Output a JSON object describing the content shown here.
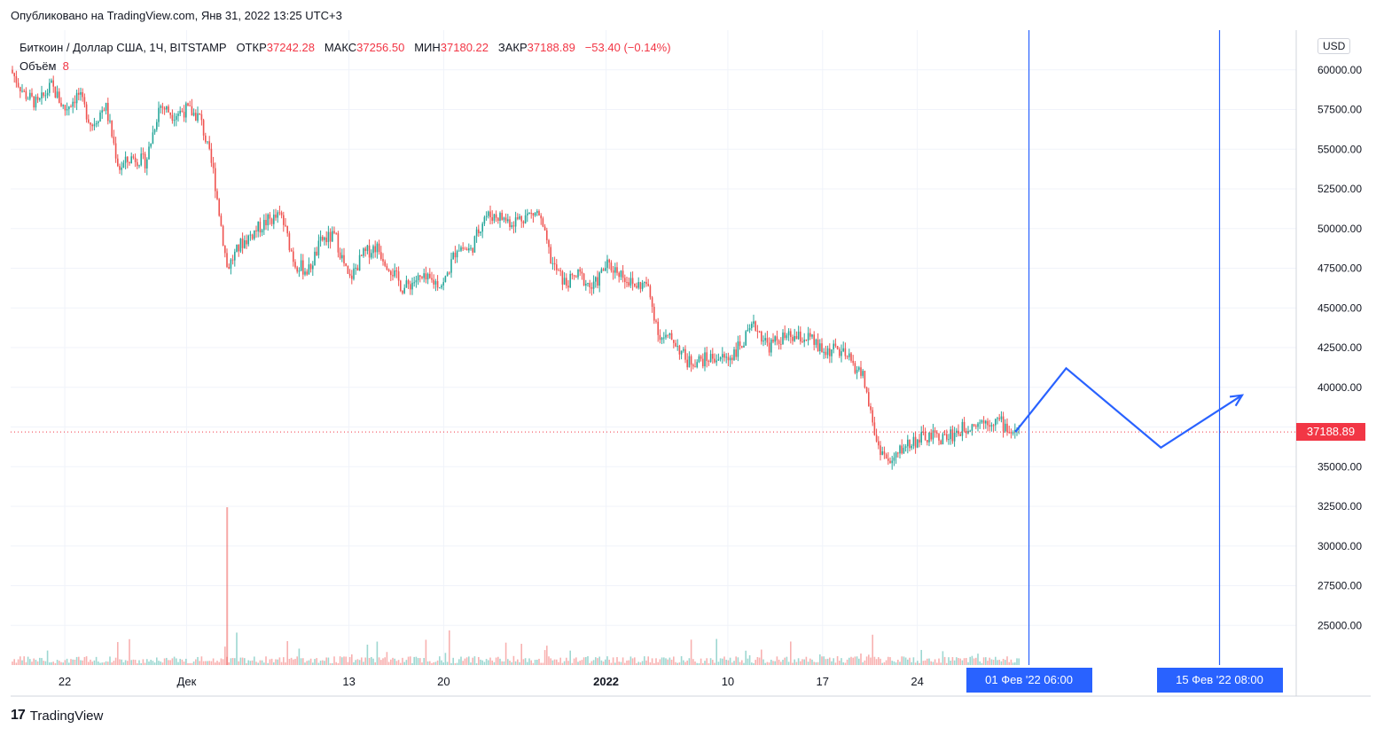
{
  "header": {
    "published": "Опубликовано на TradingView.com, Янв 31, 2022 13:25 UTC+3"
  },
  "legend": {
    "symbol": "Биткоин / Доллар США, 1Ч, BITSTAMP",
    "open_label": "ОТКР",
    "open": "37242.28",
    "high_label": "МАКС",
    "high": "37256.50",
    "low_label": "МИН",
    "low": "37180.22",
    "close_label": "ЗАКР",
    "close": "37188.89",
    "change": "−53.40 (−0.14%)",
    "volume_label": "Объём",
    "volume_value": "8"
  },
  "currency": "USD",
  "last_price_label": "37188.89",
  "footer": {
    "brand": "TradingView",
    "logo_mark": "17"
  },
  "colors": {
    "up": "#26a69a",
    "down": "#ef5350",
    "accent": "#2962ff",
    "price_line": "#f23645"
  },
  "chart_data": {
    "type": "candlestick",
    "title": "Биткоин / Доллар США, 1Ч, BITSTAMP",
    "ylim": [
      22500,
      62500
    ],
    "y_ticks": [
      25000,
      27500,
      30000,
      32500,
      35000,
      37500,
      40000,
      42500,
      45000,
      47500,
      50000,
      52500,
      55000,
      57500,
      60000
    ],
    "y_tick_labels": [
      "25000.00",
      "27500.00",
      "30000.00",
      "32500.00",
      "35000.00",
      "37500.00",
      "40000.00",
      "42500.00",
      "45000.00",
      "47500.00",
      "50000.00",
      "52500.00",
      "55000.00",
      "57500.00",
      "60000.00"
    ],
    "x_start": "2021-11-18",
    "x_end": "2022-02-21",
    "x_ticks": [
      {
        "date": "2021-11-22",
        "label": "22"
      },
      {
        "date": "2021-12-01",
        "label": "Дек"
      },
      {
        "date": "2021-12-13",
        "label": "13"
      },
      {
        "date": "2021-12-20",
        "label": "20"
      },
      {
        "date": "2022-01-01",
        "label": "2022"
      },
      {
        "date": "2022-01-10",
        "label": "10"
      },
      {
        "date": "2022-01-17",
        "label": "17"
      },
      {
        "date": "2022-01-24",
        "label": "24"
      }
    ],
    "price_path": [
      [
        "2021-11-18",
        60000
      ],
      [
        "2021-11-19",
        58500
      ],
      [
        "2021-11-20",
        57800
      ],
      [
        "2021-11-21",
        59000
      ],
      [
        "2021-11-22",
        57500
      ],
      [
        "2021-11-23",
        58500
      ],
      [
        "2021-11-24",
        56500
      ],
      [
        "2021-11-25",
        57800
      ],
      [
        "2021-11-26",
        53800
      ],
      [
        "2021-11-27",
        54500
      ],
      [
        "2021-11-28",
        54200
      ],
      [
        "2021-11-29",
        57800
      ],
      [
        "2021-11-30",
        57200
      ],
      [
        "2021-12-01",
        57500
      ],
      [
        "2021-12-02",
        57000
      ],
      [
        "2021-12-03",
        53500
      ],
      [
        "2021-12-04",
        47500
      ],
      [
        "2021-12-05",
        49000
      ],
      [
        "2021-12-06",
        49800
      ],
      [
        "2021-12-07",
        50500
      ],
      [
        "2021-12-08",
        50800
      ],
      [
        "2021-12-09",
        47800
      ],
      [
        "2021-12-10",
        47300
      ],
      [
        "2021-12-11",
        49300
      ],
      [
        "2021-12-12",
        49500
      ],
      [
        "2021-12-13",
        46700
      ],
      [
        "2021-12-14",
        48300
      ],
      [
        "2021-12-15",
        48900
      ],
      [
        "2021-12-16",
        47600
      ],
      [
        "2021-12-17",
        46200
      ],
      [
        "2021-12-18",
        46800
      ],
      [
        "2021-12-19",
        46700
      ],
      [
        "2021-12-20",
        46500
      ],
      [
        "2021-12-21",
        48900
      ],
      [
        "2021-12-22",
        48600
      ],
      [
        "2021-12-23",
        50800
      ],
      [
        "2021-12-24",
        50800
      ],
      [
        "2021-12-25",
        50400
      ],
      [
        "2021-12-26",
        50800
      ],
      [
        "2021-12-27",
        51000
      ],
      [
        "2021-12-28",
        47800
      ],
      [
        "2021-12-29",
        46500
      ],
      [
        "2021-12-30",
        47100
      ],
      [
        "2021-12-31",
        46200
      ],
      [
        "2022-01-01",
        47700
      ],
      [
        "2022-01-02",
        47300
      ],
      [
        "2022-01-03",
        46400
      ],
      [
        "2022-01-04",
        46500
      ],
      [
        "2022-01-05",
        43100
      ],
      [
        "2022-01-06",
        43000
      ],
      [
        "2022-01-07",
        41600
      ],
      [
        "2022-01-08",
        41700
      ],
      [
        "2022-01-09",
        41900
      ],
      [
        "2022-01-10",
        41800
      ],
      [
        "2022-01-11",
        42700
      ],
      [
        "2022-01-12",
        43900
      ],
      [
        "2022-01-13",
        42600
      ],
      [
        "2022-01-14",
        43100
      ],
      [
        "2022-01-15",
        43100
      ],
      [
        "2022-01-16",
        43100
      ],
      [
        "2022-01-17",
        42200
      ],
      [
        "2022-01-18",
        42400
      ],
      [
        "2022-01-19",
        41700
      ],
      [
        "2022-01-20",
        40700
      ],
      [
        "2022-01-21",
        36500
      ],
      [
        "2022-01-22",
        35100
      ],
      [
        "2022-01-23",
        36300
      ],
      [
        "2022-01-24",
        36700
      ],
      [
        "2022-01-25",
        36900
      ],
      [
        "2022-01-26",
        36800
      ],
      [
        "2022-01-27",
        37200
      ],
      [
        "2022-01-28",
        37700
      ],
      [
        "2022-01-29",
        37900
      ],
      [
        "2022-01-30",
        37900
      ],
      [
        "2022-01-31",
        37190
      ]
    ],
    "volume_spike": {
      "date": "2021-12-04"
    },
    "last_price": 37188.89,
    "projection_path": [
      [
        "2022-01-31T06:00",
        37188.89
      ],
      [
        "2022-02-04",
        41200
      ],
      [
        "2022-02-11",
        36200
      ],
      [
        "2022-02-17",
        39500
      ]
    ],
    "vertical_markers": [
      {
        "date": "2022-02-01T06:00",
        "label": "01 Фев '22   06:00"
      },
      {
        "date": "2022-02-15T08:00",
        "label": "15 Фев '22   08:00"
      }
    ],
    "grid": true
  }
}
